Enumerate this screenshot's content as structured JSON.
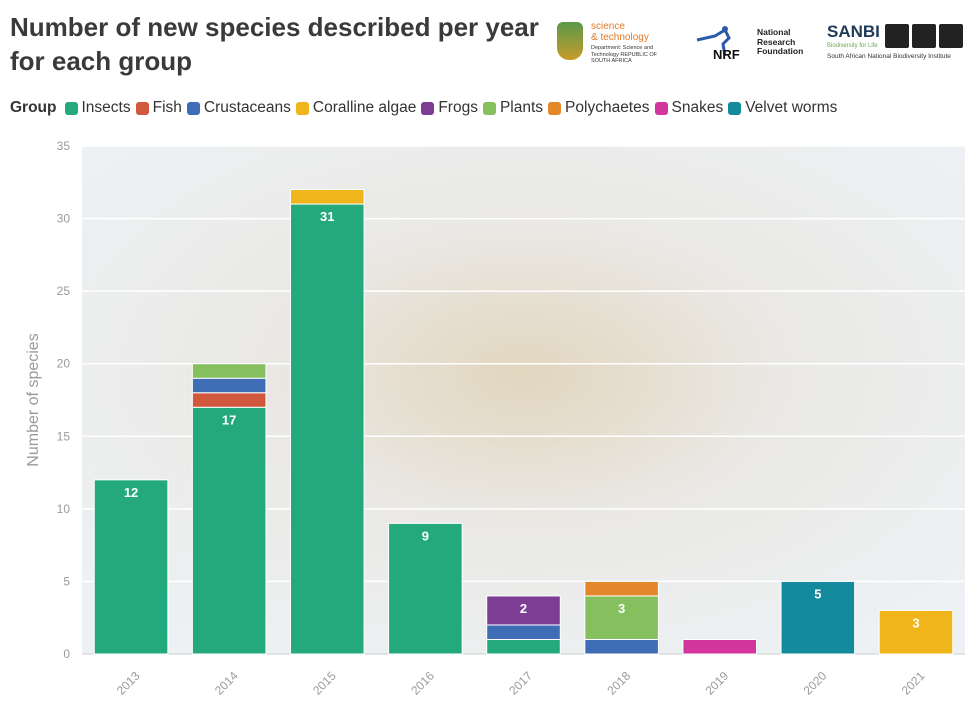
{
  "title": "Number of new species described per year for each group",
  "logos": {
    "dst_line1": "science",
    "dst_line2": "& technology",
    "dst_sub": "Department: Science and Technology REPUBLIC OF SOUTH AFRICA",
    "nrf_mark": "NRF",
    "nrf_text": "National Research Foundation",
    "sanbi_name": "SANBI",
    "sanbi_tagline": "Biodiversity for Life",
    "sanbi_full": "South African National Biodiversity Institute"
  },
  "colors": {
    "background_tint": "#dfe6ec",
    "grid": "#ffffff",
    "axis": "#cccccc"
  },
  "chart_data": {
    "type": "bar",
    "stacked": true,
    "legend_title": "Group",
    "categories": [
      "2013",
      "2014",
      "2015",
      "2016",
      "2017",
      "2018",
      "2019",
      "2020",
      "2021"
    ],
    "series": [
      {
        "name": "Insects",
        "color": "#24a97d",
        "values": [
          12,
          17,
          31,
          9,
          1,
          0,
          0,
          0,
          0
        ]
      },
      {
        "name": "Fish",
        "color": "#d1573d",
        "values": [
          0,
          1,
          0,
          0,
          0,
          0,
          0,
          0,
          0
        ]
      },
      {
        "name": "Crustaceans",
        "color": "#3f6db5",
        "values": [
          0,
          1,
          0,
          0,
          1,
          1,
          0,
          0,
          0
        ]
      },
      {
        "name": "Coralline algae",
        "color": "#efb51a",
        "values": [
          0,
          0,
          1,
          0,
          0,
          0,
          0,
          0,
          3
        ]
      },
      {
        "name": "Frogs",
        "color": "#7e3d95",
        "values": [
          0,
          0,
          0,
          0,
          2,
          0,
          0,
          0,
          0
        ]
      },
      {
        "name": "Plants",
        "color": "#85bf5e",
        "values": [
          0,
          1,
          0,
          0,
          0,
          3,
          0,
          0,
          0
        ]
      },
      {
        "name": "Polychaetes",
        "color": "#e4872a",
        "values": [
          0,
          0,
          0,
          0,
          0,
          1,
          0,
          0,
          0
        ]
      },
      {
        "name": "Snakes",
        "color": "#d2359b",
        "values": [
          0,
          0,
          0,
          0,
          0,
          0,
          1,
          0,
          0
        ]
      },
      {
        "name": "Velvet worms",
        "color": "#148b9c",
        "values": [
          0,
          0,
          0,
          0,
          0,
          0,
          0,
          5,
          0
        ]
      }
    ],
    "data_labels": [
      {
        "category": "2013",
        "series": "Insects",
        "text": "12"
      },
      {
        "category": "2014",
        "series": "Insects",
        "text": "17"
      },
      {
        "category": "2015",
        "series": "Insects",
        "text": "31"
      },
      {
        "category": "2016",
        "series": "Insects",
        "text": "9"
      },
      {
        "category": "2017",
        "series": "Frogs",
        "text": "2"
      },
      {
        "category": "2018",
        "series": "Plants",
        "text": "3"
      },
      {
        "category": "2020",
        "series": "Velvet worms",
        "text": "5"
      },
      {
        "category": "2021",
        "series": "Coralline algae",
        "text": "3"
      }
    ],
    "ylabel": "Number of species",
    "xlabel": "",
    "ylim": [
      0,
      35
    ],
    "yticks": [
      0,
      5,
      10,
      15,
      20,
      25,
      30,
      35
    ],
    "grid": true,
    "legend_position": "top-left"
  }
}
